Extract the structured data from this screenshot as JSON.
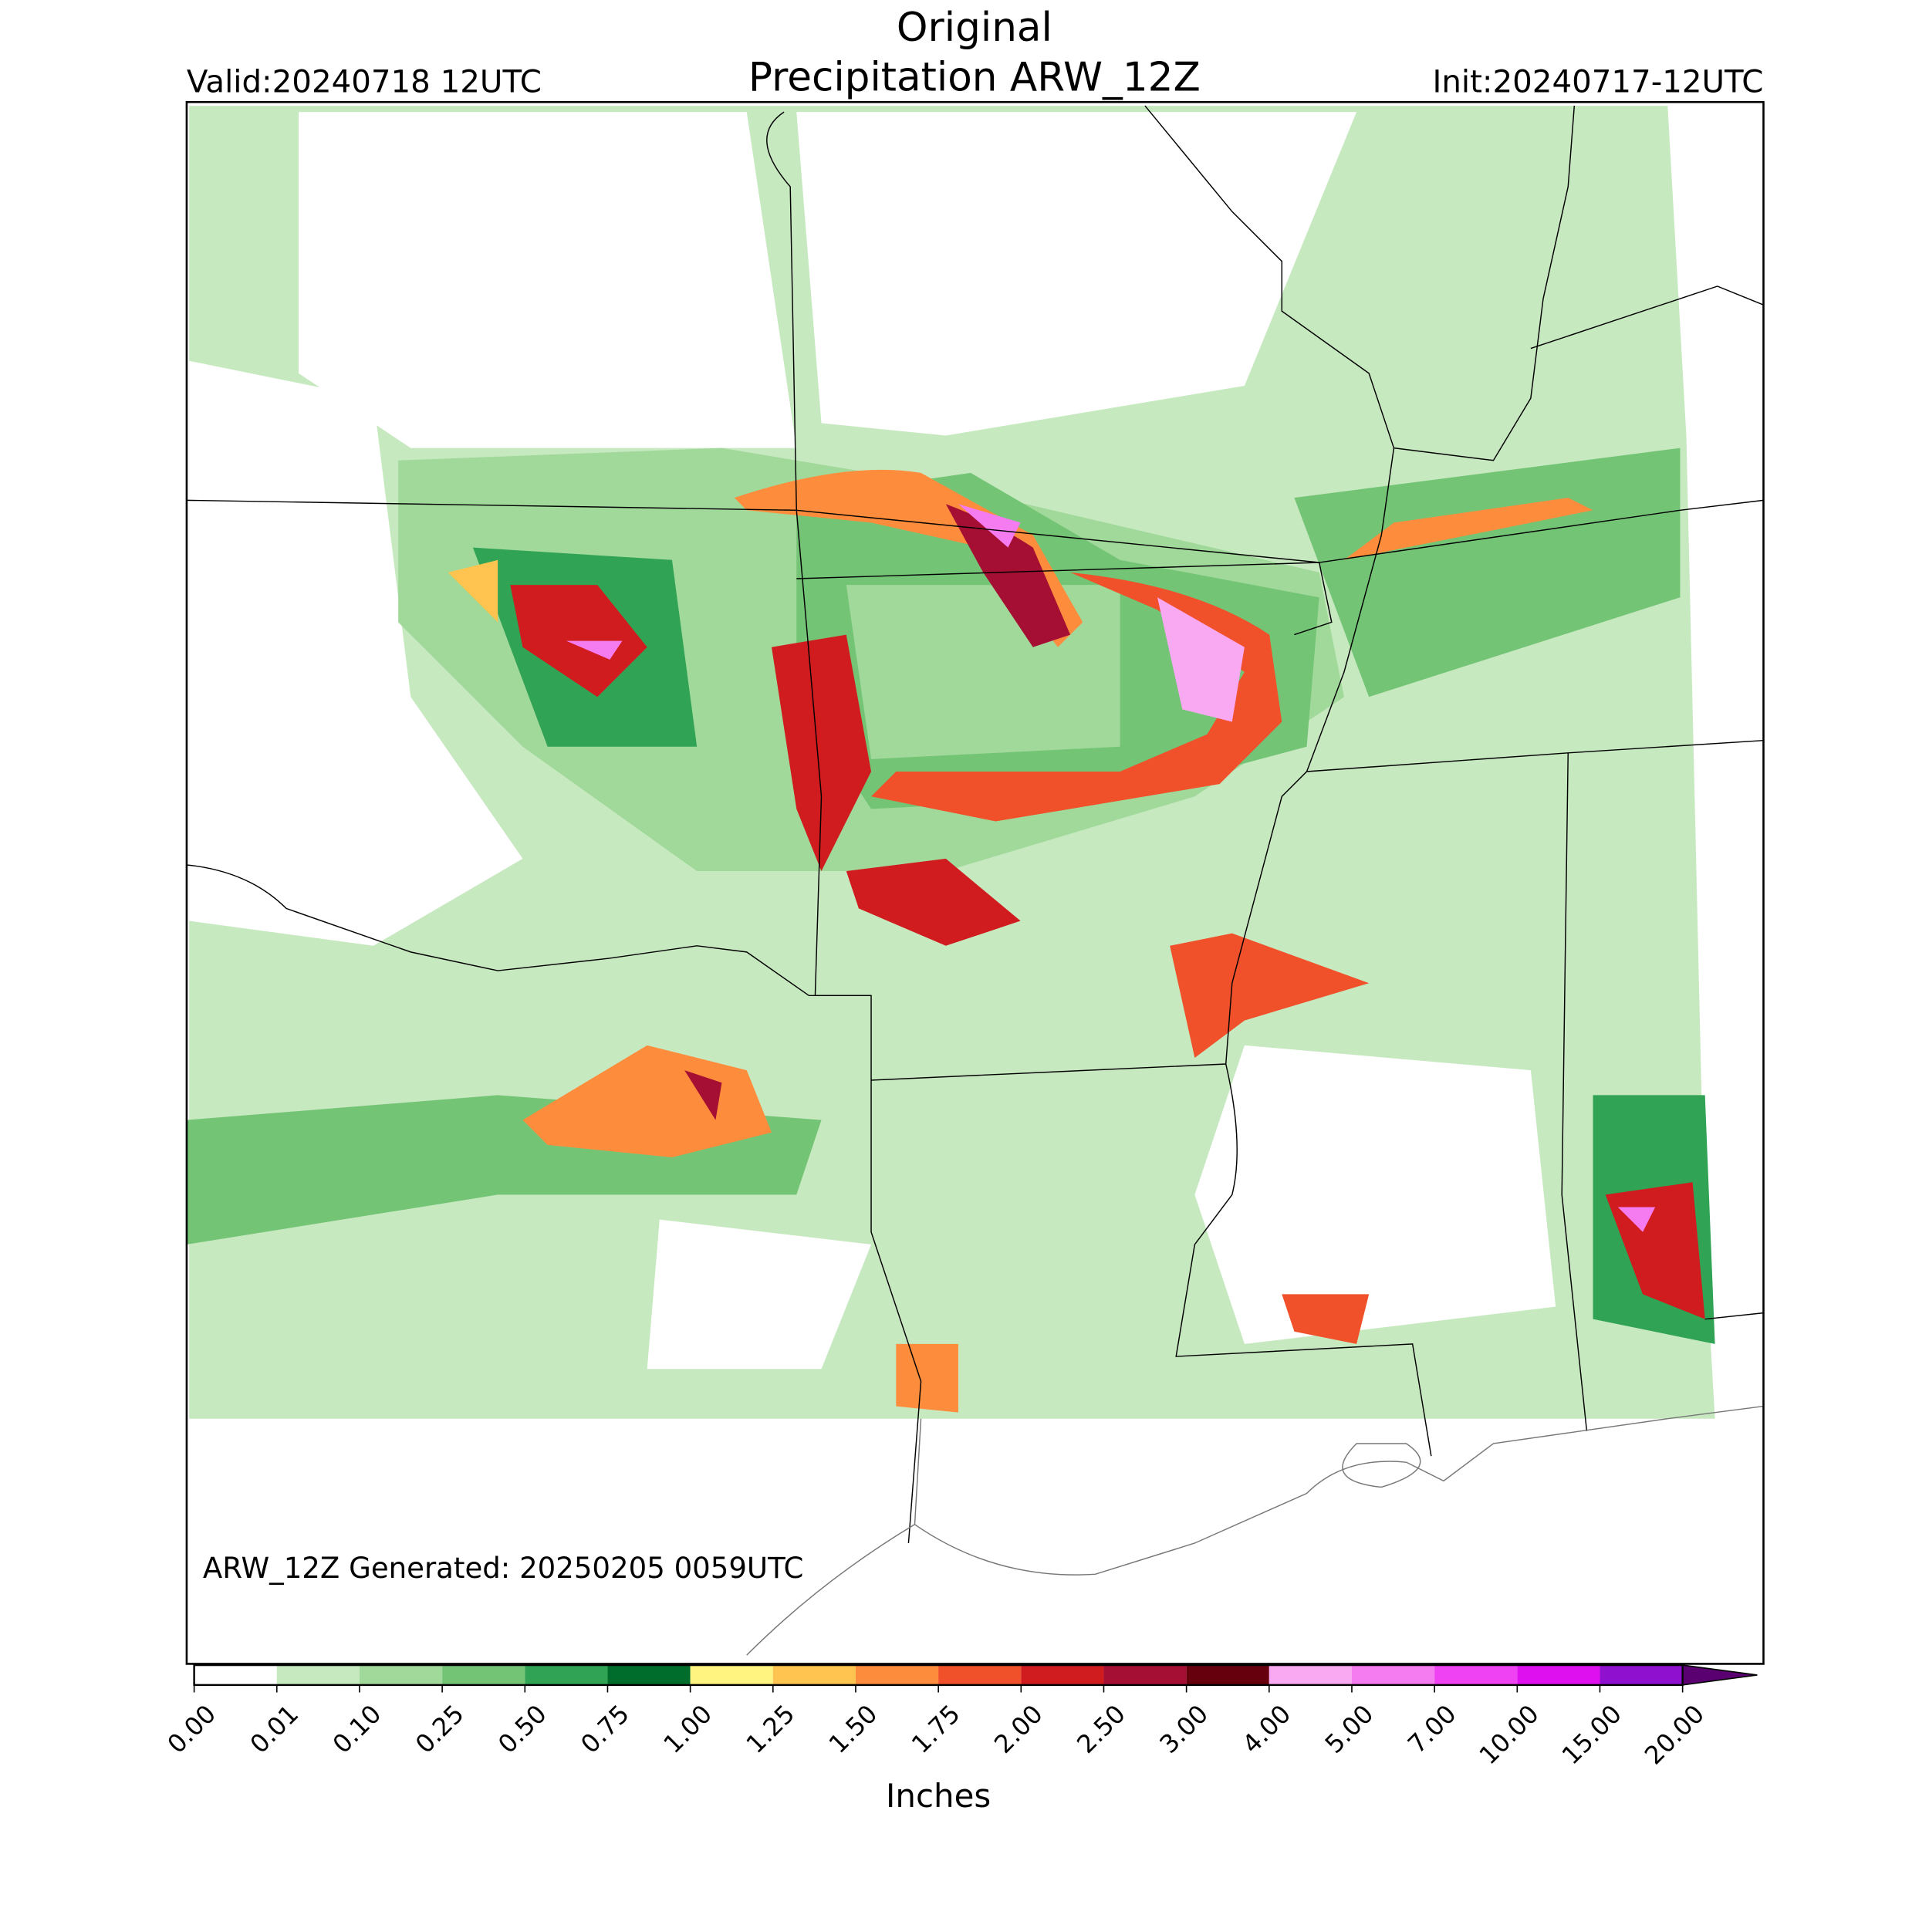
{
  "header": {
    "title": "Original",
    "subtitle": "Precipitation ARW_12Z",
    "valid": "Valid:20240718 12UTC",
    "init": "Init:20240717-12UTC"
  },
  "footer": "ARW_12Z Generated: 20250205 0059UTC",
  "colorbar": {
    "label": "Inches",
    "extend": "max",
    "extend_color": "#5a0070",
    "ticks": [
      {
        "value": 0,
        "label": "0.00"
      },
      {
        "value": 0.01,
        "label": "0.01"
      },
      {
        "value": 0.1,
        "label": "0.10"
      },
      {
        "value": 0.25,
        "label": "0.25"
      },
      {
        "value": 0.5,
        "label": "0.50"
      },
      {
        "value": 0.75,
        "label": "0.75"
      },
      {
        "value": 1,
        "label": "1.00"
      },
      {
        "value": 1.25,
        "label": "1.25"
      },
      {
        "value": 1.5,
        "label": "1.50"
      },
      {
        "value": 1.75,
        "label": "1.75"
      },
      {
        "value": 2,
        "label": "2.00"
      },
      {
        "value": 2.5,
        "label": "2.50"
      },
      {
        "value": 3,
        "label": "3.00"
      },
      {
        "value": 4,
        "label": "4.00"
      },
      {
        "value": 5,
        "label": "5.00"
      },
      {
        "value": 7,
        "label": "7.00"
      },
      {
        "value": 10,
        "label": "10.00"
      },
      {
        "value": 15,
        "label": "15.00"
      },
      {
        "value": 20,
        "label": "20.00"
      }
    ],
    "colors": [
      "#ffffff",
      "#c7e9c0",
      "#a1d99b",
      "#74c476",
      "#31a354",
      "#006d2c",
      "#fff480",
      "#fec44f",
      "#fd8d3c",
      "#f0502a",
      "#d01c1f",
      "#a50f33",
      "#67000d",
      "#f9a8f2",
      "#f57bf0",
      "#ef42f2",
      "#de10f0",
      "#9010d0"
    ]
  }
}
